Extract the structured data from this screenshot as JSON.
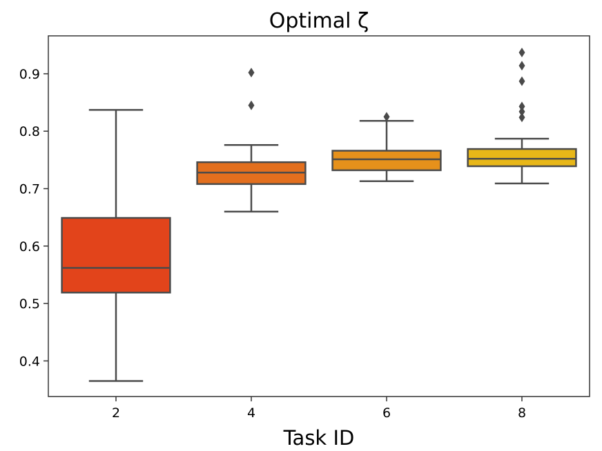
{
  "chart_data": {
    "type": "box",
    "title": "Optimal ζ",
    "xlabel": "Task ID",
    "ylabel": "",
    "ylim": [
      0.338,
      0.966
    ],
    "yticks": [
      "0.4",
      "0.5",
      "0.6",
      "0.7",
      "0.8",
      "0.9"
    ],
    "grid": false,
    "categories": [
      "2",
      "4",
      "6",
      "8"
    ],
    "boxes": [
      {
        "category": "2",
        "color": "#e2441b",
        "whisker_low": 0.365,
        "q1": 0.519,
        "median": 0.562,
        "q3": 0.649,
        "whisker_high": 0.837,
        "outliers": []
      },
      {
        "category": "4",
        "color": "#e36f1e",
        "whisker_low": 0.66,
        "q1": 0.708,
        "median": 0.728,
        "q3": 0.746,
        "whisker_high": 0.776,
        "outliers": [
          0.845,
          0.902
        ]
      },
      {
        "category": "6",
        "color": "#e6911b",
        "whisker_low": 0.713,
        "q1": 0.732,
        "median": 0.751,
        "q3": 0.766,
        "whisker_high": 0.818,
        "outliers": [
          0.825
        ]
      },
      {
        "category": "8",
        "color": "#e8b718",
        "whisker_low": 0.709,
        "q1": 0.739,
        "median": 0.752,
        "q3": 0.769,
        "whisker_high": 0.787,
        "outliers": [
          0.824,
          0.834,
          0.843,
          0.887,
          0.914,
          0.937
        ]
      }
    ]
  }
}
